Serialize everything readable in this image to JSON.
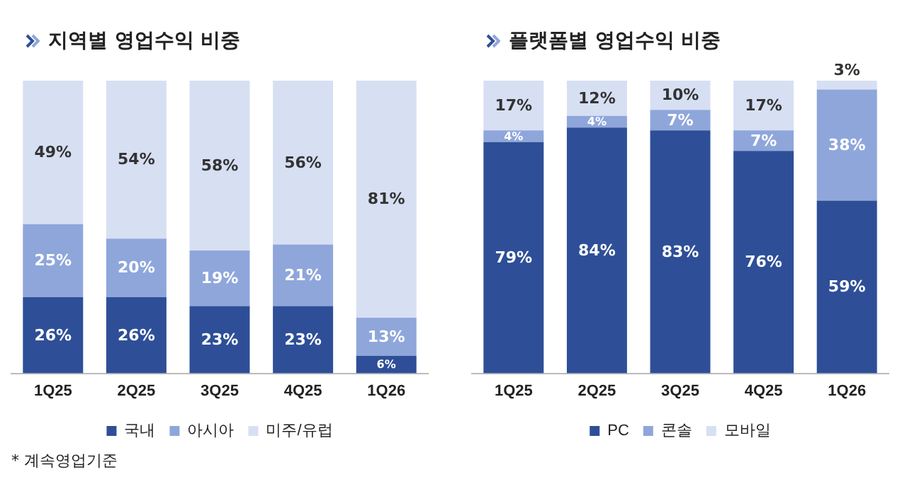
{
  "chart_data": [
    {
      "type": "bar",
      "title": "지역별 영업수익 비중",
      "stacked": true,
      "legend": "bottom",
      "grid": false,
      "categories": [
        "1Q25",
        "2Q25",
        "3Q25",
        "4Q25",
        "1Q26"
      ],
      "series": [
        {
          "name": "국내",
          "color": "#2e4f97",
          "values": [
            26,
            26,
            23,
            23,
            6
          ],
          "value_labels": [
            "26%",
            "26%",
            "23%",
            "23%",
            "6%"
          ]
        },
        {
          "name": "아시아",
          "color": "#8fa6db",
          "values": [
            25,
            20,
            19,
            21,
            13
          ],
          "value_labels": [
            "25%",
            "20%",
            "19%",
            "21%",
            "13%"
          ]
        },
        {
          "name": "미주/유럽",
          "color": "#d7dff3",
          "values": [
            49,
            54,
            58,
            56,
            81
          ],
          "value_labels": [
            "49%",
            "54%",
            "58%",
            "56%",
            "81%"
          ]
        }
      ],
      "annotations": [
        "* 계속영업기준"
      ]
    },
    {
      "type": "bar",
      "title": "플랫폼별 영업수익 비중",
      "stacked": true,
      "legend": "bottom",
      "grid": false,
      "categories": [
        "1Q25",
        "2Q25",
        "3Q25",
        "4Q25",
        "1Q26"
      ],
      "series": [
        {
          "name": "PC",
          "color": "#2e4f97",
          "values": [
            79,
            84,
            83,
            76,
            59
          ],
          "value_labels": [
            "79%",
            "84%",
            "83%",
            "76%",
            "59%"
          ]
        },
        {
          "name": "콘솔",
          "color": "#8fa6db",
          "values": [
            4,
            4,
            7,
            7,
            38
          ],
          "value_labels": [
            "4%",
            "4%",
            "7%",
            "7%",
            "38%"
          ]
        },
        {
          "name": "모바일",
          "color": "#d7dff3",
          "values": [
            17,
            12,
            10,
            17,
            3
          ],
          "value_labels": [
            "17%",
            "12%",
            "10%",
            "17%",
            "3%"
          ]
        }
      ]
    }
  ]
}
